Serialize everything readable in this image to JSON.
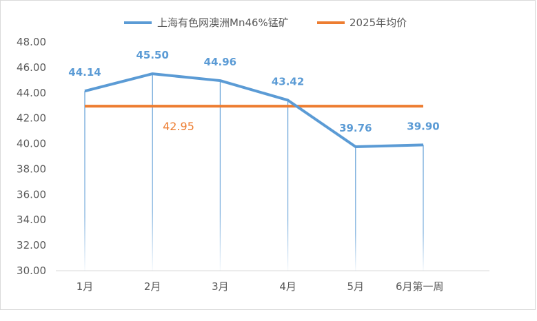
{
  "chart_data": {
    "type": "line",
    "categories": [
      "1月",
      "2月",
      "3月",
      "4月",
      "5月",
      "6月第一周"
    ],
    "series": [
      {
        "name": "上海有色网澳洲Mn46%锰矿",
        "values": [
          44.14,
          45.5,
          44.96,
          43.42,
          39.76,
          39.9
        ],
        "labels": [
          "44.14",
          "45.50",
          "44.96",
          "43.42",
          "39.76",
          "39.90"
        ],
        "color": "#5b9bd5"
      },
      {
        "name": "2025年均价",
        "values": [
          42.95,
          42.95,
          42.95,
          42.95,
          42.95,
          42.95
        ],
        "label": "42.95",
        "color": "#ed7d31"
      }
    ],
    "y_ticks": [
      "30.00",
      "32.00",
      "34.00",
      "36.00",
      "38.00",
      "40.00",
      "42.00",
      "44.00",
      "46.00",
      "48.00"
    ],
    "ylim": [
      30,
      48
    ],
    "legend_position": "top",
    "grid": false,
    "drop_lines": true
  }
}
